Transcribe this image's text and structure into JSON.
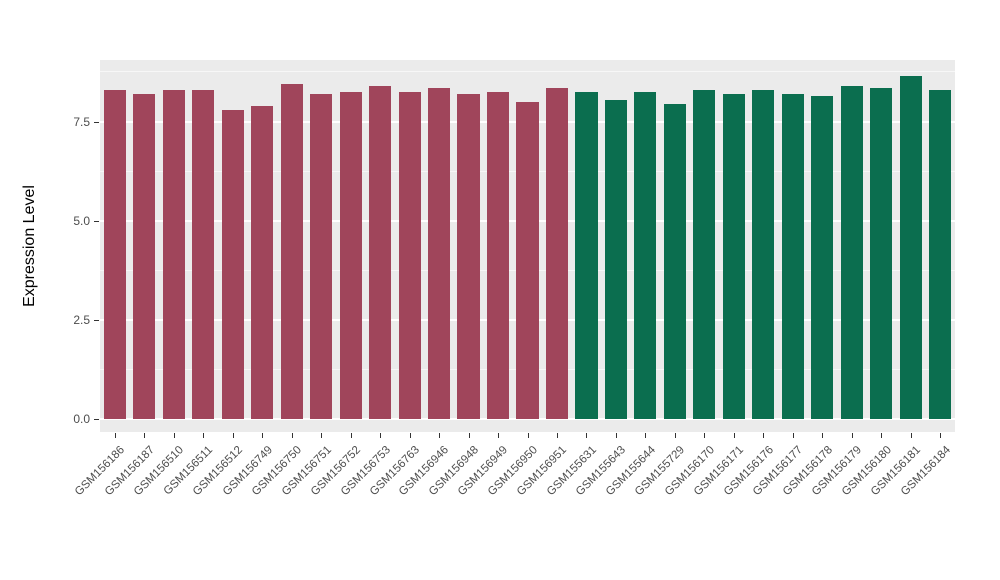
{
  "figure": {
    "background": "#FFFFFF",
    "panel_background": "#EBEBEB",
    "grid_major_color": "#FFFFFF",
    "grid_minor_color": "#FFFFFF",
    "axis_text_color": "#4D4D4D",
    "tick_mark_color": "#333333"
  },
  "chart_data": {
    "type": "bar",
    "title": "",
    "xlabel": "",
    "ylabel": "Expression Level",
    "grid": true,
    "legend": "none",
    "ylim": [
      0,
      9.05
    ],
    "axis_display_min": -0.32,
    "axis_display_max": 9.05,
    "y_major_ticks": [
      0,
      2.5,
      5,
      7.5
    ],
    "y_tick_labels": [
      "0.0",
      "2.5",
      "5.0",
      "7.5"
    ],
    "y_minor_ticks": [
      1.25,
      3.75,
      6.25,
      8.75
    ],
    "categories": [
      "GSM156186",
      "GSM156187",
      "GSM156510",
      "GSM156511",
      "GSM156512",
      "GSM156749",
      "GSM156750",
      "GSM156751",
      "GSM156752",
      "GSM156753",
      "GSM156763",
      "GSM156946",
      "GSM156948",
      "GSM156949",
      "GSM156950",
      "GSM156951",
      "GSM155631",
      "GSM155643",
      "GSM155644",
      "GSM155729",
      "GSM156170",
      "GSM156171",
      "GSM156176",
      "GSM156177",
      "GSM156178",
      "GSM156179",
      "GSM156180",
      "GSM156181",
      "GSM156184"
    ],
    "values": [
      8.3,
      8.2,
      8.3,
      8.3,
      7.8,
      7.9,
      8.45,
      8.2,
      8.25,
      8.4,
      8.25,
      8.35,
      8.2,
      8.25,
      8.0,
      8.35,
      8.25,
      8.05,
      8.25,
      7.95,
      8.3,
      8.2,
      8.3,
      8.2,
      8.15,
      8.4,
      8.35,
      8.65,
      8.3
    ],
    "groups": [
      "group1",
      "group1",
      "group1",
      "group1",
      "group1",
      "group1",
      "group1",
      "group1",
      "group1",
      "group1",
      "group1",
      "group1",
      "group1",
      "group1",
      "group1",
      "group1",
      "group2",
      "group2",
      "group2",
      "group2",
      "group2",
      "group2",
      "group2",
      "group2",
      "group2",
      "group2",
      "group2",
      "group2",
      "group2"
    ],
    "palette": {
      "group1": "#A0455B",
      "group2": "#0B6E4F"
    }
  }
}
